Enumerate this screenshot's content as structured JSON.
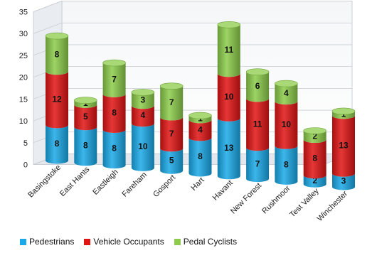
{
  "chart_data": {
    "type": "bar",
    "stacked": true,
    "style": "3d-cylinder",
    "categories": [
      "Basingstoke",
      "East Hants",
      "Eastleigh",
      "Fareham",
      "Gosport",
      "Hart",
      "Havant",
      "New Forest",
      "Rushmoor",
      "Test Valley",
      "Winchester"
    ],
    "series": [
      {
        "name": "Pedestrians",
        "color": "#19a9e8",
        "values": [
          8,
          8,
          8,
          10,
          5,
          8,
          13,
          7,
          8,
          2,
          3
        ]
      },
      {
        "name": "Vehicle Occupants",
        "color": "#e11414",
        "values": [
          12,
          5,
          8,
          4,
          7,
          4,
          10,
          11,
          10,
          8,
          13
        ]
      },
      {
        "name": "Pedal Cyclists",
        "color": "#8ccc4a",
        "values": [
          8,
          1,
          7,
          3,
          7,
          1,
          11,
          6,
          4,
          2,
          1
        ]
      }
    ],
    "ylim": [
      0,
      35
    ],
    "yticks": [
      0,
      5,
      10,
      15,
      20,
      25,
      30,
      35
    ],
    "title": "",
    "xlabel": "",
    "ylabel": "",
    "grid": true,
    "legend": "bottom"
  }
}
